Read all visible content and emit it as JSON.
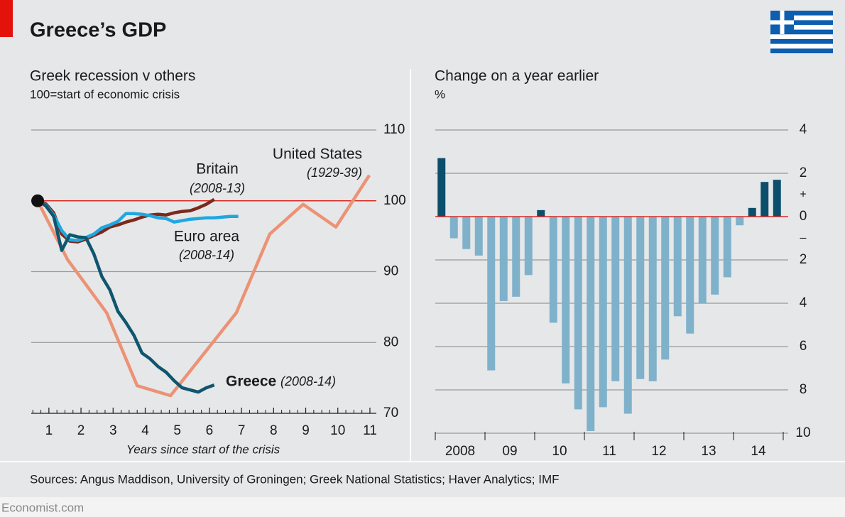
{
  "title": "Greece’s GDP",
  "source": "Sources: Angus Maddison, University of Groningen; Greek National Statistics; Haver Analytics; IMF",
  "footer": "Economist.com",
  "chart_data": [
    {
      "type": "line",
      "title": "Greek recession v others",
      "subtitle": "100=start of economic crisis",
      "x_label": "Years since start of the crisis",
      "xlim": [
        0.45,
        11.2
      ],
      "xticks": [
        1,
        2,
        3,
        4,
        5,
        6,
        7,
        8,
        9,
        10,
        11
      ],
      "ylim": [
        70,
        110
      ],
      "yticks": [
        70,
        80,
        90,
        100,
        110
      ],
      "grid": true,
      "reference_line": {
        "value": 100,
        "color": "#e3120b"
      },
      "series": [
        {
          "name": "Greece",
          "period": "(2008-14)",
          "color": "#0e566e",
          "x": [
            0.65,
            0.9,
            1.15,
            1.4,
            1.65,
            1.9,
            2.15,
            2.4,
            2.65,
            2.9,
            3.15,
            3.4,
            3.65,
            3.9,
            4.15,
            4.4,
            4.65,
            4.9,
            5.15,
            5.4,
            5.65,
            5.9,
            6.15
          ],
          "values": [
            100,
            99.3,
            97.8,
            93,
            95.2,
            94.9,
            94.8,
            92.5,
            89.3,
            87.4,
            84.4,
            82.8,
            81.0,
            78.5,
            77.7,
            76.6,
            75.8,
            74.6,
            73.6,
            73.3,
            73.0,
            73.6,
            74.0
          ]
        },
        {
          "name": "Euro area",
          "period": "(2008-14)",
          "color": "#1fa7e1",
          "x": [
            0.65,
            0.9,
            1.15,
            1.4,
            1.65,
            1.9,
            2.15,
            2.4,
            2.65,
            2.9,
            3.15,
            3.4,
            3.65,
            3.9,
            4.15,
            4.4,
            4.65,
            4.9,
            5.15,
            5.4,
            5.65,
            5.9,
            6.15,
            6.4,
            6.65,
            6.9
          ],
          "values": [
            100,
            99.4,
            98,
            95.8,
            94.5,
            94.4,
            94.8,
            95.3,
            96.2,
            96.6,
            97.1,
            98.2,
            98.2,
            98.1,
            97.9,
            97.6,
            97.5,
            97.0,
            97.2,
            97.4,
            97.5,
            97.6,
            97.6,
            97.7,
            97.8,
            97.8
          ]
        },
        {
          "name": "Britain",
          "period": "(2008-13)",
          "color": "#7b2a1a",
          "x": [
            0.65,
            0.9,
            1.15,
            1.4,
            1.65,
            1.9,
            2.15,
            2.4,
            2.65,
            2.9,
            3.15,
            3.4,
            3.65,
            3.9,
            4.15,
            4.4,
            4.65,
            4.9,
            5.15,
            5.4,
            5.65,
            5.9,
            6.15
          ],
          "values": [
            100,
            99.6,
            98.3,
            95.3,
            94.3,
            94.2,
            94.6,
            95.1,
            95.6,
            96.3,
            96.6,
            97.0,
            97.3,
            97.7,
            98.0,
            98.1,
            98.0,
            98.3,
            98.5,
            98.6,
            99.0,
            99.5,
            100.2
          ]
        },
        {
          "name": "United States",
          "period": "(1929-39)",
          "color": "#ec9275",
          "x": [
            0.65,
            1.58,
            2.8,
            3.75,
            4.79,
            6.84,
            7.88,
            8.92,
            9.94,
            10.98
          ],
          "values": [
            100,
            91.7,
            84.2,
            73.9,
            72.5,
            84.2,
            95.3,
            99.5,
            96.3,
            103.6
          ]
        }
      ]
    },
    {
      "type": "bar",
      "title": "Change on a year earlier",
      "y_label": "%",
      "categories": [
        "2008",
        null,
        null,
        null,
        "09",
        null,
        null,
        null,
        "10",
        null,
        null,
        null,
        "11",
        null,
        null,
        null,
        "12",
        null,
        null,
        null,
        "13",
        null,
        null,
        null,
        "14",
        null,
        null,
        null
      ],
      "values": [
        2.7,
        -1.0,
        -1.5,
        -1.8,
        -7.1,
        -3.9,
        -3.7,
        -2.7,
        0.3,
        -4.9,
        -7.7,
        -8.9,
        -9.9,
        -8.8,
        -7.6,
        -9.1,
        -7.5,
        -7.6,
        -6.6,
        -4.6,
        -5.4,
        -4.0,
        -3.6,
        -2.8,
        -0.4,
        0.4,
        1.6,
        1.7
      ],
      "positive_color": "#0b4f6c",
      "negative_color": "#7fb1cb",
      "ylim": [
        -10,
        4
      ],
      "yticks": [
        4,
        2,
        0,
        {
          "value": -2,
          "label": "2"
        },
        {
          "value": -4,
          "label": "4"
        },
        {
          "value": -6,
          "label": "6"
        },
        {
          "value": -8,
          "label": "8"
        },
        {
          "value": -10,
          "label": "10"
        }
      ],
      "sign_labels": {
        "positive": "+",
        "negative": "–"
      },
      "grid": true,
      "reference_line": {
        "value": 0,
        "color": "#e3120b"
      }
    }
  ]
}
